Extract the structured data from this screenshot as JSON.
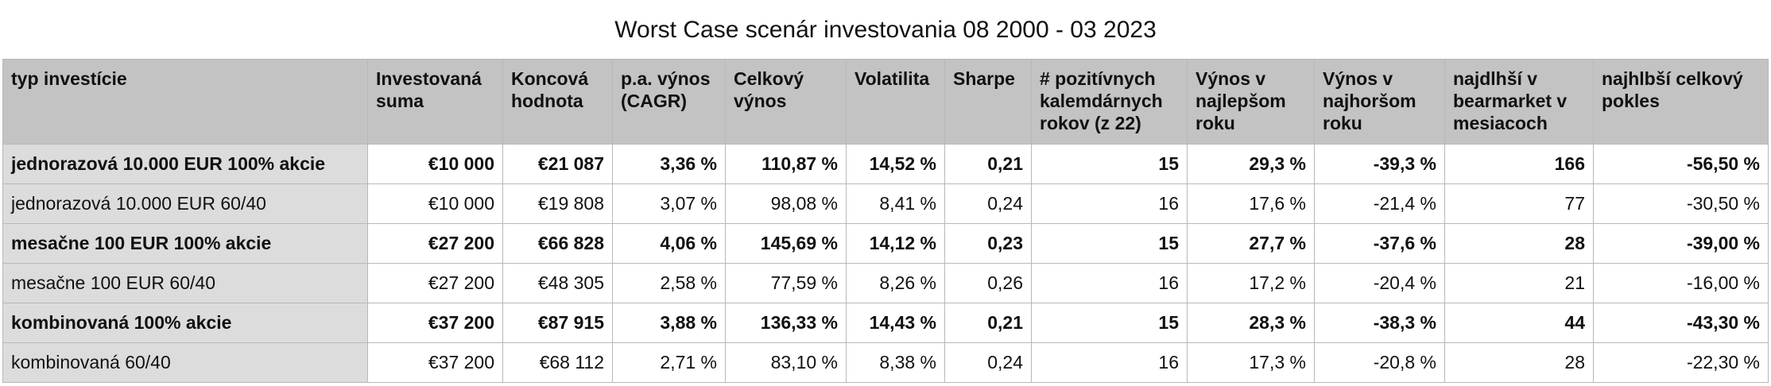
{
  "title": "Worst Case scenár investovania 08 2000 - 03 2023",
  "table": {
    "header": [
      "typ investície",
      "Investovaná suma",
      "Koncová hodnota",
      "p.a. výnos (CAGR)",
      "Celkový výnos",
      "Volatilita",
      "Sharpe",
      "# pozitívnych kalemdárnych rokov (z 22)",
      "Výnos v najlepšom roku",
      "Výnos v najhoršom roku",
      "najdlhší v bearmarket v mesiacoch",
      "najhlbší celkový pokles"
    ],
    "rows": [
      {
        "bold": true,
        "cells": [
          "jednorazová 10.000 EUR 100% akcie",
          "€10 000",
          "€21 087",
          "3,36 %",
          "110,87 %",
          "14,52 %",
          "0,21",
          "15",
          "29,3 %",
          "-39,3 %",
          "166",
          "-56,50 %"
        ]
      },
      {
        "bold": false,
        "cells": [
          "jednorazová 10.000 EUR 60/40",
          "€10 000",
          "€19 808",
          "3,07 %",
          "98,08 %",
          "8,41 %",
          "0,24",
          "16",
          "17,6 %",
          "-21,4 %",
          "77",
          "-30,50 %"
        ]
      },
      {
        "bold": true,
        "cells": [
          "mesačne 100 EUR 100% akcie",
          "€27 200",
          "€66 828",
          "4,06 %",
          "145,69 %",
          "14,12 %",
          "0,23",
          "15",
          "27,7 %",
          "-37,6 %",
          "28",
          "-39,00 %"
        ]
      },
      {
        "bold": false,
        "cells": [
          "mesačne 100 EUR 60/40",
          "€27 200",
          "€48 305",
          "2,58 %",
          "77,59 %",
          "8,26 %",
          "0,26",
          "16",
          "17,2 %",
          "-20,4 %",
          "21",
          "-16,00 %"
        ]
      },
      {
        "bold": true,
        "cells": [
          "kombinovaná 100% akcie",
          "€37 200",
          "€87 915",
          "3,88 %",
          "136,33 %",
          "14,43 %",
          "0,21",
          "15",
          "28,3 %",
          "-38,3 %",
          "44",
          "-43,30 %"
        ]
      },
      {
        "bold": false,
        "cells": [
          "kombinovaná 60/40",
          "€37 200",
          "€68 112",
          "2,71 %",
          "83,10 %",
          "8,38 %",
          "0,24",
          "16",
          "17,3 %",
          "-20,8 %",
          "28",
          "-22,30 %"
        ]
      }
    ]
  }
}
